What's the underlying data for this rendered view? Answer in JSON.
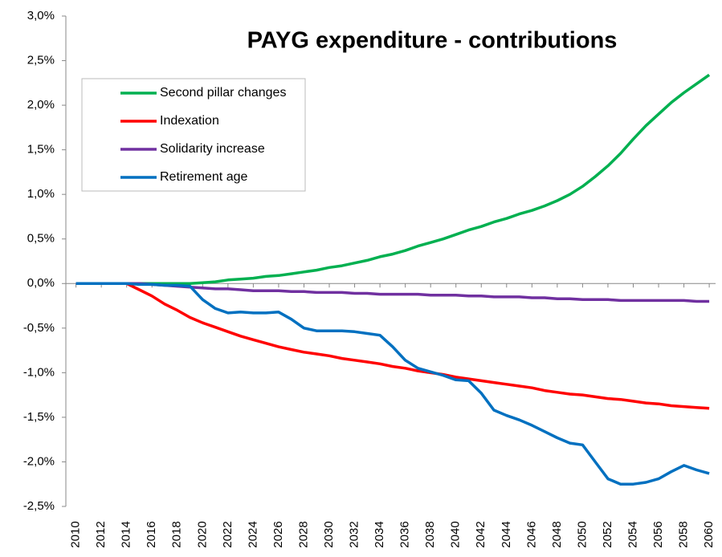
{
  "chart_data": {
    "type": "line",
    "title": "PAYG expenditure - contributions",
    "x": [
      2010,
      2011,
      2012,
      2013,
      2014,
      2015,
      2016,
      2017,
      2018,
      2019,
      2020,
      2021,
      2022,
      2023,
      2024,
      2025,
      2026,
      2027,
      2028,
      2029,
      2030,
      2031,
      2032,
      2033,
      2034,
      2035,
      2036,
      2037,
      2038,
      2039,
      2040,
      2041,
      2042,
      2043,
      2044,
      2045,
      2046,
      2047,
      2048,
      2049,
      2050,
      2051,
      2052,
      2053,
      2054,
      2055,
      2056,
      2057,
      2058,
      2059,
      2060
    ],
    "series": [
      {
        "name": "Second pillar changes",
        "color": "#00b050",
        "values": [
          0,
          0,
          0,
          0,
          0,
          0,
          0,
          0,
          0,
          0,
          0.01,
          0.02,
          0.04,
          0.05,
          0.06,
          0.08,
          0.09,
          0.11,
          0.13,
          0.15,
          0.18,
          0.2,
          0.23,
          0.26,
          0.3,
          0.33,
          0.37,
          0.42,
          0.46,
          0.5,
          0.55,
          0.6,
          0.64,
          0.69,
          0.73,
          0.78,
          0.82,
          0.87,
          0.93,
          1.0,
          1.09,
          1.2,
          1.32,
          1.46,
          1.62,
          1.77,
          1.9,
          2.03,
          2.14,
          2.24,
          2.34
        ]
      },
      {
        "name": "Indexation",
        "color": "#ff0000",
        "values": [
          0,
          0,
          0,
          0,
          0,
          -0.07,
          -0.14,
          -0.23,
          -0.3,
          -0.38,
          -0.44,
          -0.49,
          -0.54,
          -0.59,
          -0.63,
          -0.67,
          -0.71,
          -0.74,
          -0.77,
          -0.79,
          -0.81,
          -0.84,
          -0.86,
          -0.88,
          -0.9,
          -0.93,
          -0.95,
          -0.98,
          -1.0,
          -1.02,
          -1.05,
          -1.07,
          -1.09,
          -1.11,
          -1.13,
          -1.15,
          -1.17,
          -1.2,
          -1.22,
          -1.24,
          -1.25,
          -1.27,
          -1.29,
          -1.3,
          -1.32,
          -1.34,
          -1.35,
          -1.37,
          -1.38,
          -1.39,
          -1.4
        ]
      },
      {
        "name": "Solidarity increase",
        "color": "#7030a0",
        "values": [
          0,
          0,
          0,
          0,
          0,
          0,
          -0.01,
          -0.02,
          -0.03,
          -0.04,
          -0.05,
          -0.06,
          -0.06,
          -0.07,
          -0.08,
          -0.08,
          -0.08,
          -0.09,
          -0.09,
          -0.1,
          -0.1,
          -0.1,
          -0.11,
          -0.11,
          -0.12,
          -0.12,
          -0.12,
          -0.12,
          -0.13,
          -0.13,
          -0.13,
          -0.14,
          -0.14,
          -0.15,
          -0.15,
          -0.15,
          -0.16,
          -0.16,
          -0.17,
          -0.17,
          -0.18,
          -0.18,
          -0.18,
          -0.19,
          -0.19,
          -0.19,
          -0.19,
          -0.19,
          -0.19,
          -0.2,
          -0.2
        ]
      },
      {
        "name": "Retirement age",
        "color": "#0070c0",
        "values": [
          0,
          0,
          0,
          0,
          0,
          -0.01,
          -0.01,
          -0.02,
          -0.02,
          -0.03,
          -0.18,
          -0.28,
          -0.33,
          -0.32,
          -0.33,
          -0.33,
          -0.32,
          -0.4,
          -0.5,
          -0.53,
          -0.53,
          -0.53,
          -0.54,
          -0.56,
          -0.58,
          -0.71,
          -0.86,
          -0.95,
          -0.99,
          -1.03,
          -1.08,
          -1.09,
          -1.23,
          -1.42,
          -1.48,
          -1.53,
          -1.59,
          -1.66,
          -1.73,
          -1.79,
          -1.81,
          -2.0,
          -2.19,
          -2.25,
          -2.25,
          -2.23,
          -2.19,
          -2.11,
          -2.04,
          -2.09,
          -2.13
        ]
      }
    ],
    "xlim": [
      2009.2,
      2060.5
    ],
    "xticks": [
      2010,
      2012,
      2014,
      2016,
      2018,
      2020,
      2022,
      2024,
      2026,
      2028,
      2030,
      2032,
      2034,
      2036,
      2038,
      2040,
      2042,
      2044,
      2046,
      2048,
      2050,
      2052,
      2054,
      2056,
      2058,
      2060
    ],
    "ylim": [
      -2.5,
      3.0
    ],
    "yticks": [
      {
        "value": -2.5,
        "label": "-2,5%"
      },
      {
        "value": -2.0,
        "label": "-2,0%"
      },
      {
        "value": -1.5,
        "label": "-1,5%"
      },
      {
        "value": -1.0,
        "label": "-1,0%"
      },
      {
        "value": -0.5,
        "label": "-0,5%"
      },
      {
        "value": 0.0,
        "label": "0,0%"
      },
      {
        "value": 0.5,
        "label": "0,5%"
      },
      {
        "value": 1.0,
        "label": "1,0%"
      },
      {
        "value": 1.5,
        "label": "1,5%"
      },
      {
        "value": 2.0,
        "label": "2,0%"
      },
      {
        "value": 2.5,
        "label": "2,5%"
      },
      {
        "value": 3.0,
        "label": "3,0%"
      }
    ],
    "grid": false,
    "legend": "upper left"
  }
}
